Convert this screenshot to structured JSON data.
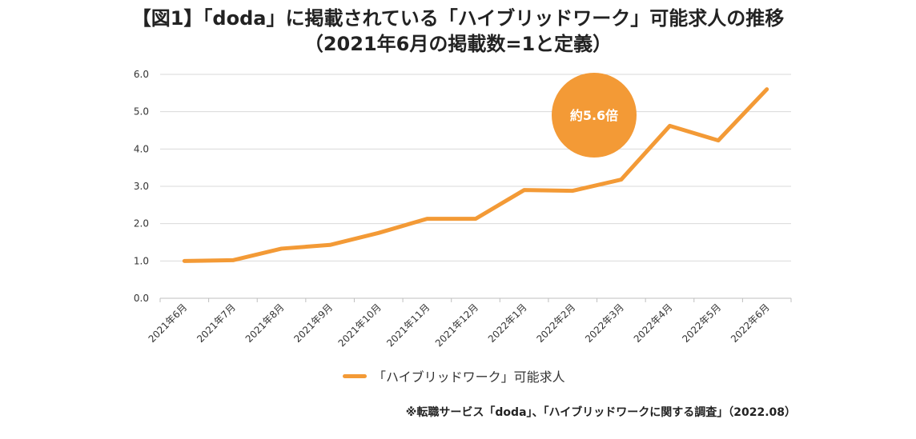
{
  "title_line1": "【図1】「doda」に掲載されている「ハイブリッドワーク」可能求人の推移",
  "title_line2": "（2021年6月の掲載数=1と定義）",
  "colors": {
    "line": "#f39a36",
    "bubble": "#f39a36",
    "grid": "#d9d9d9"
  },
  "chart_data": {
    "type": "line",
    "categories": [
      "2021年6月",
      "2021年7月",
      "2021年8月",
      "2021年9月",
      "2021年10月",
      "2021年11月",
      "2021年12月",
      "2022年1月",
      "2022年2月",
      "2022年3月",
      "2022年4月",
      "2022年5月",
      "2022年6月"
    ],
    "series": [
      {
        "name": "「ハイブリッドワーク」可能求人",
        "values": [
          1.0,
          1.02,
          1.33,
          1.43,
          1.75,
          2.13,
          2.13,
          2.9,
          2.88,
          3.18,
          4.62,
          4.23,
          5.6
        ]
      }
    ],
    "ylim": [
      0,
      6
    ],
    "yticks": [
      "0.0",
      "1.0",
      "2.0",
      "3.0",
      "4.0",
      "5.0",
      "6.0"
    ],
    "annotation": "約5.6倍",
    "legend_label": "「ハイブリッドワーク」可能求人",
    "grid": true,
    "legend_position": "bottom"
  },
  "source_note": "※転職サービス「doda」、「ハイブリッドワークに関する調査」（2022.08）"
}
